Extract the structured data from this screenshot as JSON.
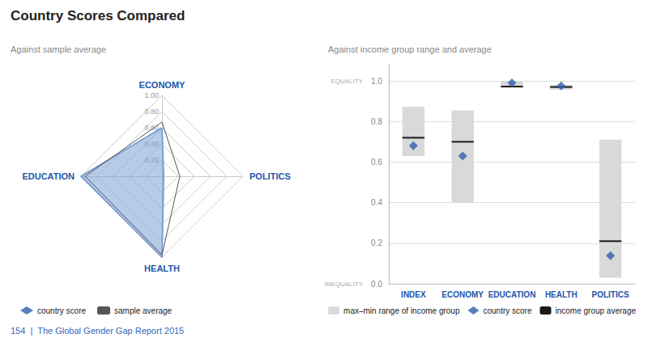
{
  "chart_data": [
    {
      "type": "radar",
      "title": "Country Scores Compared",
      "subtitle": "Against sample average",
      "categories": [
        "ECONOMY",
        "EDUCATION",
        "HEALTH",
        "POLITICS"
      ],
      "series": [
        {
          "name": "country score",
          "color": "#7b9fd4",
          "values": [
            0.6,
            1.0,
            1.0,
            0.02
          ]
        },
        {
          "name": "sample average",
          "color": "#555555",
          "values": [
            0.67,
            0.95,
            0.97,
            0.22
          ]
        }
      ],
      "ylim": [
        0.0,
        1.0
      ],
      "yticks": [
        {
          "value": 0.2,
          "label": "0.20"
        },
        {
          "value": 0.4,
          "label": "0.40"
        },
        {
          "value": 0.6,
          "label": "0.60"
        },
        {
          "value": 0.8,
          "label": "0.80"
        },
        {
          "value": 1.0,
          "label": "1.00"
        }
      ],
      "grid": true,
      "legend": "bottom",
      "annotations": [
        {
          "text": "154  |  The Global Gender Gap Report 2015"
        }
      ]
    },
    {
      "type": "bar",
      "subtitle": "Against income group range and average",
      "categories": [
        "INDEX",
        "ECONOMY",
        "EDUCATION",
        "HEALTH",
        "POLITICS"
      ],
      "series": [
        {
          "name": "max–min range of income group",
          "type": "bar",
          "color": "#d9d9d9",
          "min": [
            0.63,
            0.4,
            0.969,
            0.957,
            0.03
          ],
          "max": [
            0.873,
            0.855,
            1.0,
            0.98,
            0.71
          ]
        },
        {
          "name": "country score",
          "type": "scatter",
          "marker": "diamond",
          "color": "#2c5faa",
          "values": [
            0.68,
            0.63,
            0.99,
            0.975,
            0.138
          ]
        },
        {
          "name": "income group average",
          "type": "line",
          "marker": "hline",
          "color": "#1a1a1a",
          "values": [
            0.72,
            0.7,
            0.972,
            0.97,
            0.21
          ]
        }
      ],
      "ylim": [
        0.0,
        1.08
      ],
      "yticks": [
        {
          "value": 0.0,
          "label": "0.0"
        },
        {
          "value": 0.2,
          "label": "0.2"
        },
        {
          "value": 0.4,
          "label": "0.4"
        },
        {
          "value": 0.6,
          "label": "0.6"
        },
        {
          "value": 0.8,
          "label": "0.8"
        },
        {
          "value": 1.0,
          "label": "1.0"
        }
      ],
      "grid": true,
      "legend": "bottom",
      "annotations": [
        {
          "text": "EQUALITY",
          "y": 1.0
        },
        {
          "text": "INEQUALITY",
          "y": 0.0
        }
      ]
    }
  ]
}
